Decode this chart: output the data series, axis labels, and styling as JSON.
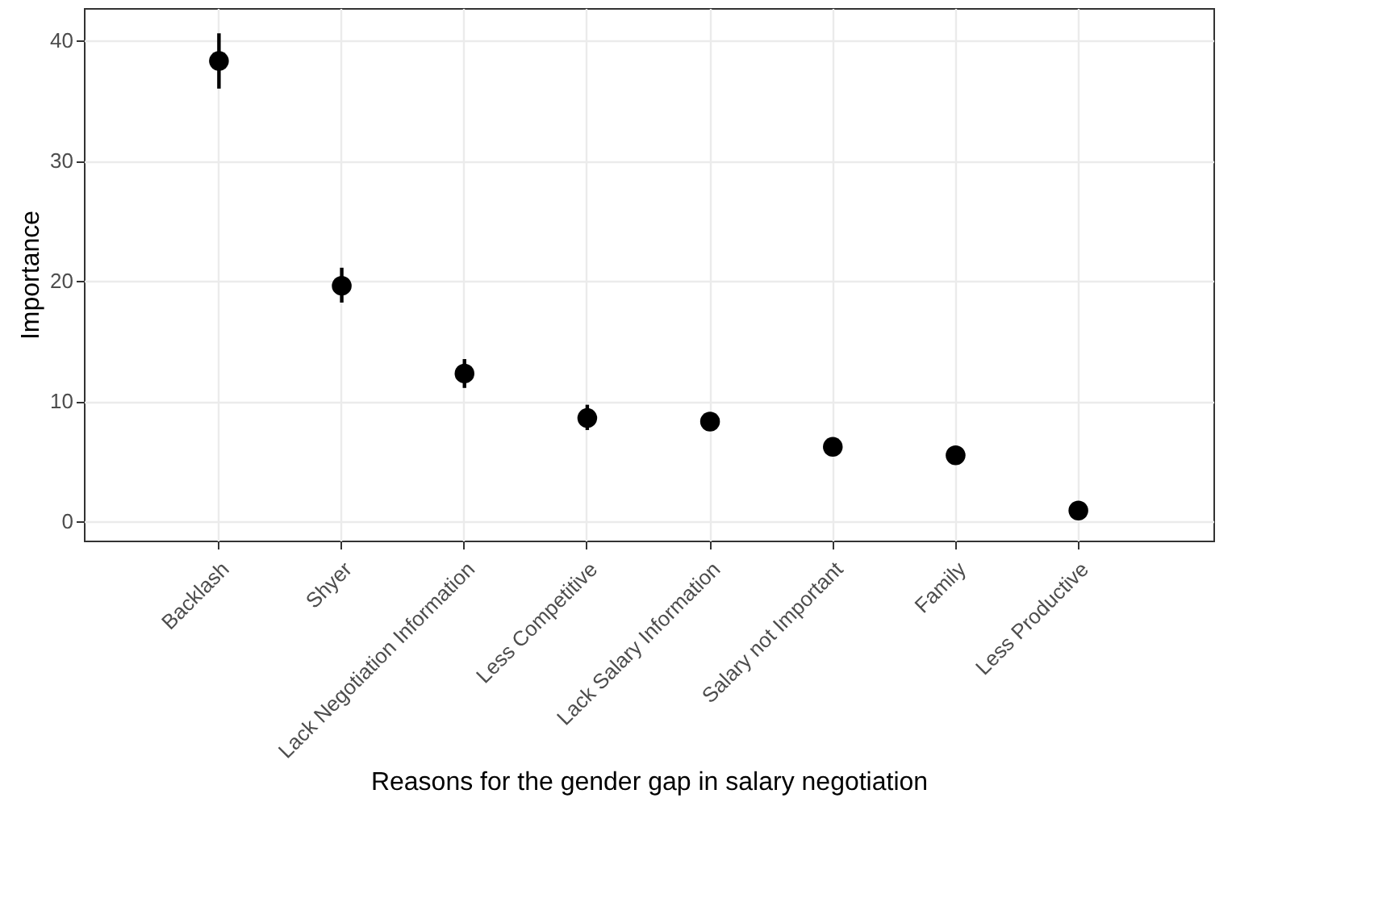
{
  "chart_data": {
    "type": "scatter",
    "xlabel": "Reasons for the gender gap in salary negotiation",
    "ylabel": "Importance",
    "categories": [
      "Backlash",
      "Shyer",
      "Lack Negotiation Information",
      "Less Competitive",
      "Lack Salary Information",
      "Salary not Important",
      "Family",
      "Less Productive"
    ],
    "series": [
      {
        "color": "#000000",
        "values": [
          38.3,
          19.6,
          12.3,
          8.6,
          8.3,
          6.2,
          5.5,
          0.9
        ],
        "errors": [
          [
            36.0,
            40.6
          ],
          [
            18.2,
            21.1
          ],
          [
            11.1,
            13.5
          ],
          [
            7.6,
            9.7
          ],
          null,
          null,
          null,
          null
        ]
      }
    ],
    "ylim": [
      -1.6,
      42.7
    ],
    "yticks": [
      0,
      10,
      20,
      30,
      40
    ],
    "grid": true,
    "marker": "circle"
  }
}
